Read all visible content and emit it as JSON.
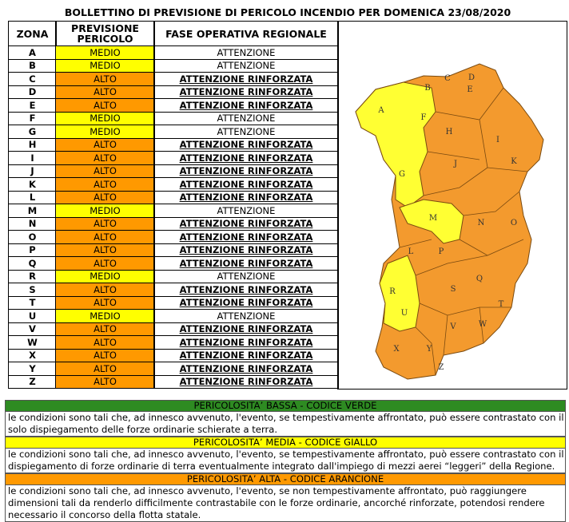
{
  "title": "BOLLETTINO DI PREVISIONE DI PERICOLO INCENDIO PER DOMENICA 23/08/2020",
  "table": {
    "headers": [
      "ZONA",
      "PREVISIONE PERICOLO",
      "FASE OPERATIVA REGIONALE"
    ],
    "level_colors": {
      "MEDIO": "#ffff00",
      "ALTO": "#ff9900"
    },
    "emphasis": {
      "ATTENZIONE RINFORZATA": true
    },
    "rows": [
      [
        "A",
        "MEDIO",
        "ATTENZIONE"
      ],
      [
        "B",
        "MEDIO",
        "ATTENZIONE"
      ],
      [
        "C",
        "ALTO",
        "ATTENZIONE RINFORZATA"
      ],
      [
        "D",
        "ALTO",
        "ATTENZIONE RINFORZATA"
      ],
      [
        "E",
        "ALTO",
        "ATTENZIONE RINFORZATA"
      ],
      [
        "F",
        "MEDIO",
        "ATTENZIONE"
      ],
      [
        "G",
        "MEDIO",
        "ATTENZIONE"
      ],
      [
        "H",
        "ALTO",
        "ATTENZIONE RINFORZATA"
      ],
      [
        "I",
        "ALTO",
        "ATTENZIONE RINFORZATA"
      ],
      [
        "J",
        "ALTO",
        "ATTENZIONE RINFORZATA"
      ],
      [
        "K",
        "ALTO",
        "ATTENZIONE RINFORZATA"
      ],
      [
        "L",
        "ALTO",
        "ATTENZIONE RINFORZATA"
      ],
      [
        "M",
        "MEDIO",
        "ATTENZIONE"
      ],
      [
        "N",
        "ALTO",
        "ATTENZIONE RINFORZATA"
      ],
      [
        "O",
        "ALTO",
        "ATTENZIONE RINFORZATA"
      ],
      [
        "P",
        "ALTO",
        "ATTENZIONE RINFORZATA"
      ],
      [
        "Q",
        "ALTO",
        "ATTENZIONE RINFORZATA"
      ],
      [
        "R",
        "MEDIO",
        "ATTENZIONE"
      ],
      [
        "S",
        "ALTO",
        "ATTENZIONE RINFORZATA"
      ],
      [
        "T",
        "ALTO",
        "ATTENZIONE RINFORZATA"
      ],
      [
        "U",
        "MEDIO",
        "ATTENZIONE"
      ],
      [
        "V",
        "ALTO",
        "ATTENZIONE RINFORZATA"
      ],
      [
        "W",
        "ALTO",
        "ATTENZIONE RINFORZATA"
      ],
      [
        "X",
        "ALTO",
        "ATTENZIONE RINFORZATA"
      ],
      [
        "Y",
        "ALTO",
        "ATTENZIONE RINFORZATA"
      ],
      [
        "Z",
        "ALTO",
        "ATTENZIONE RINFORZATA"
      ]
    ]
  },
  "map": {
    "labels": [
      "A",
      "B",
      "C",
      "D",
      "E",
      "F",
      "G",
      "H",
      "I",
      "J",
      "K",
      "L",
      "M",
      "N",
      "O",
      "P",
      "Q",
      "R",
      "S",
      "T",
      "U",
      "V",
      "W",
      "X",
      "Y",
      "Z"
    ]
  },
  "legend": [
    {
      "heading": "PERICOLOSITA’ BASSA - CODICE VERDE",
      "color": "#2e8b22",
      "lines": [
        "le condizioni sono tali che, ad innesco avvenuto, l'evento, se tempestivamente affrontato, può essere contrastato con il",
        "solo dispiegamento delle forze ordinarie schierate a terra."
      ]
    },
    {
      "heading": "PERICOLOSITA’ MEDIA - CODICE GIALLO",
      "color": "#ffff00",
      "lines": [
        "le condizioni sono tali che, ad innesco avvenuto, l'evento, se tempestivamente affrontato, può essere contrastato con il",
        "dispiegamento di forze ordinarie di terra eventualmente integrato dall'impiego di mezzi aerei “leggeri” della Regione."
      ]
    },
    {
      "heading": "PERICOLOSITA’ ALTA - CODICE ARANCIONE",
      "color": "#ff9900",
      "lines": [
        "le condizioni sono tali che, ad innesco avvenuto, l'evento, se non tempestivamente affrontato, può raggiungere",
        "dimensioni tali da renderlo difficilmente contrastabile con le forze ordinarie, ancorché rinforzate, potendosi rendere",
        "necessario il concorso della flotta statale."
      ]
    }
  ]
}
